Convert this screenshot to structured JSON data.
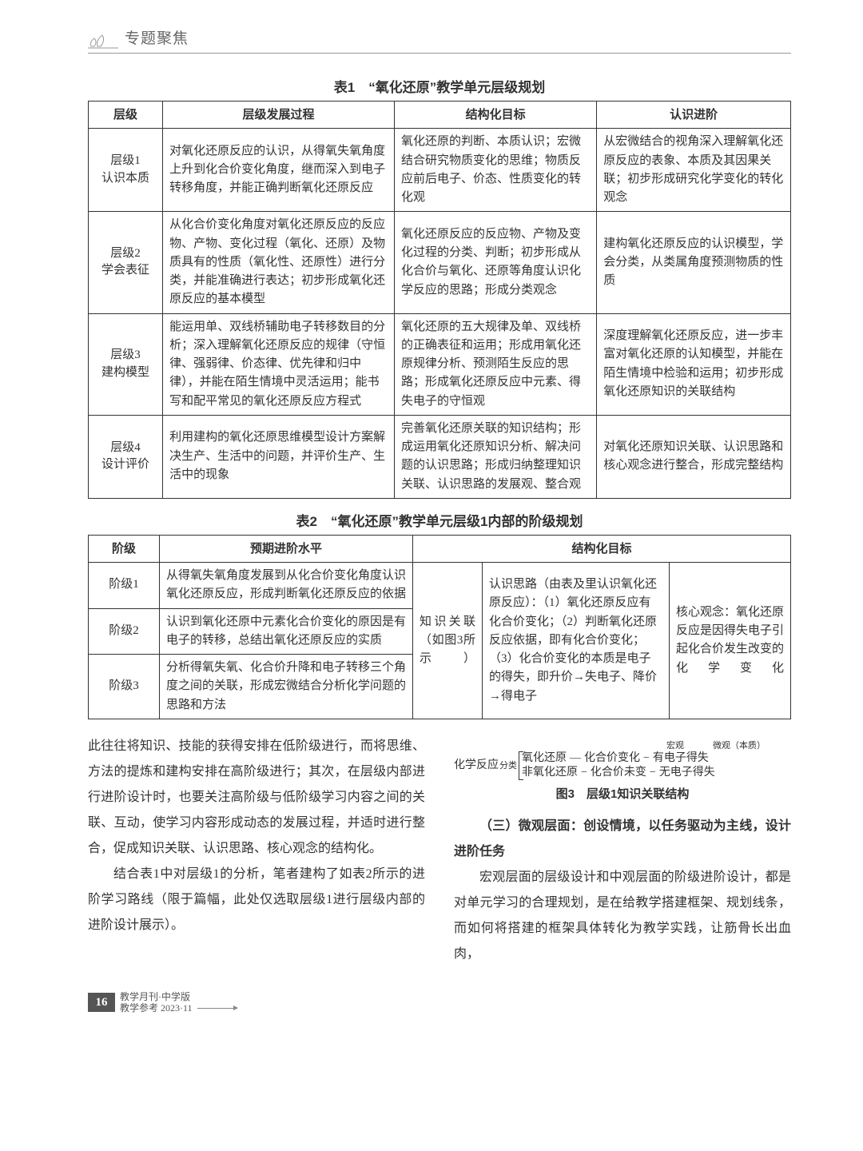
{
  "header": {
    "section_title": "专题聚焦"
  },
  "table1": {
    "caption": "表1　“氧化还原”教学单元层级规划",
    "headers": [
      "层级",
      "层级发展过程",
      "结构化目标",
      "认识进阶"
    ],
    "rows": [
      {
        "level": "层级1\n认识本质",
        "process": "对氧化还原反应的认识，从得氧失氧角度上升到化合价变化角度，继而深入到电子转移角度，并能正确判断氧化还原反应",
        "struct": "氧化还原的判断、本质认识；宏微结合研究物质变化的思维；物质反应前后电子、价态、性质变化的转化观",
        "cog": "从宏微结合的视角深入理解氧化还原反应的表象、本质及其因果关联；初步形成研究化学变化的转化观念"
      },
      {
        "level": "层级2\n学会表征",
        "process": "从化合价变化角度对氧化还原反应的反应物、产物、变化过程（氧化、还原）及物质具有的性质（氧化性、还原性）进行分类，并能准确进行表达；初步形成氧化还原反应的基本模型",
        "struct": "氧化还原反应的反应物、产物及变化过程的分类、判断；初步形成从化合价与氧化、还原等角度认识化学反应的思路；形成分类观念",
        "cog": "建构氧化还原反应的认识模型，学会分类，从类属角度预测物质的性质"
      },
      {
        "level": "层级3\n建构模型",
        "process": "能运用单、双线桥辅助电子转移数目的分析；深入理解氧化还原反应的规律（守恒律、强弱律、价态律、优先律和归中律），并能在陌生情境中灵活运用；能书写和配平常见的氧化还原反应方程式",
        "struct": "氧化还原的五大规律及单、双线桥的正确表征和运用；形成用氧化还原规律分析、预测陌生反应的思路；形成氧化还原反应中元素、得失电子的守恒观",
        "cog": "深度理解氧化还原反应，进一步丰富对氧化还原的认知模型，并能在陌生情境中检验和运用；初步形成氧化还原知识的关联结构"
      },
      {
        "level": "层级4\n设计评价",
        "process": "利用建构的氧化还原思维模型设计方案解决生产、生活中的问题，并评价生产、生活中的现象",
        "struct": "完善氧化还原关联的知识结构；形成运用氧化还原知识分析、解决问题的认识思路；形成归纳整理知识关联、认识思路的发展观、整合观",
        "cog": "对氧化还原知识关联、认识思路和核心观念进行整合，形成完整结构"
      }
    ]
  },
  "table2": {
    "caption": "表2　“氧化还原”教学单元层级1内部的阶级规划",
    "headers": [
      "阶级",
      "预期进阶水平",
      "结构化目标"
    ],
    "merge_mid": "知识关联（如图3所示）",
    "merge_big": "认识思路（由表及里认识氧化还原反应）：（1）氧化还原反应有化合价变化；（2）判断氧化还原反应依据，即有化合价变化；（3）化合价变化的本质是电子的得失，即升价→失电子、降价→得电子",
    "merge_right": "核心观念：氧化还原反应是因得失电子引起化合价发生改变的化学变化",
    "rows": [
      {
        "stage": "阶级1",
        "expect": "从得氧失氧角度发展到从化合价变化角度认识氧化还原反应，形成判断氧化还原反应的依据"
      },
      {
        "stage": "阶级2",
        "expect": "认识到氧化还原中元素化合价变化的原因是有电子的转移，总结出氧化还原反应的实质"
      },
      {
        "stage": "阶级3",
        "expect": "分析得氧失氧、化合价升降和电子转移三个角度之间的关联，形成宏微结合分析化学问题的思路和方法"
      }
    ]
  },
  "bodyLeft": {
    "p1": "此往往将知识、技能的获得安排在低阶级进行，而将思维、方法的提炼和建构安排在高阶级进行；其次，在层级内部进行进阶设计时，也要关注高阶级与低阶级学习内容之间的关联、互动，使学习内容形成动态的发展过程，并适时进行整合，促成知识关联、认识思路、核心观念的结构化。",
    "p2": "结合表1中对层级1的分析，笔者建构了如表2所示的进阶学习路线（限于篇幅，此处仅选取层级1进行层级内部的进阶设计展示）。"
  },
  "figure3": {
    "top_macro": "宏观",
    "top_micro": "微观（本质）",
    "left": "化学反应",
    "tag": "分类",
    "r1a": "氧化还原",
    "r1b": "化合价变化",
    "r1c": "有电子得失",
    "r2a": "非氧化还原",
    "r2b": "化合价未变",
    "r2c": "无电子得失",
    "caption": "图3　层级1知识关联结构"
  },
  "bodyRight": {
    "h_bold1": "（三）微观层面：创设情境，以任务驱动为主线，",
    "h_plain": "设计进阶任务",
    "p1": "宏观层面的层级设计和中观层面的阶级进阶设计，都是对单元学习的合理规划，是在给教学搭建框架、规划线条，而如何将搭建的框架具体转化为教学实践，让筋骨长出血肉，"
  },
  "footer": {
    "page": "16",
    "line1": "教学月刊·中学版",
    "line2": "教学参考 2023·11"
  },
  "style": {
    "accent": "#555555",
    "border": "#333333",
    "font_body_pt": 15,
    "font_header_pt": 17,
    "line_height_body": 2.0
  }
}
